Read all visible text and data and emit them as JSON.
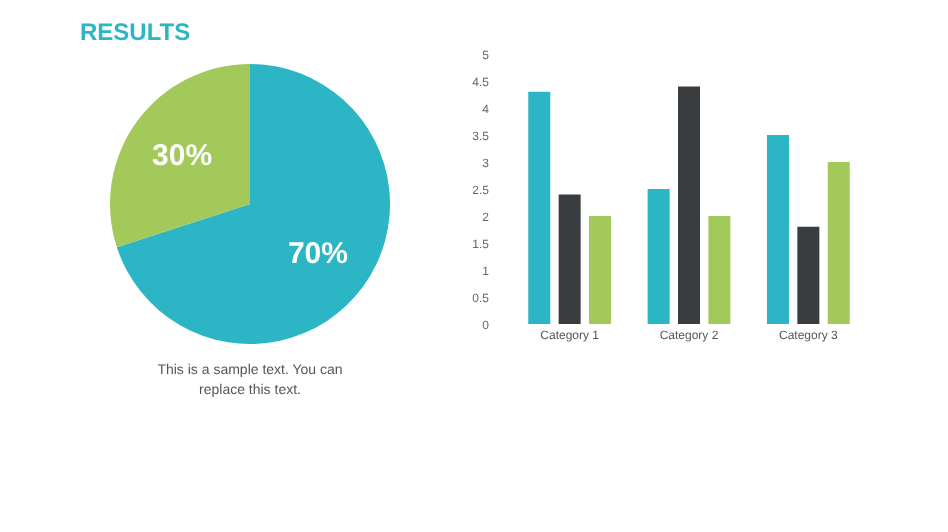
{
  "chart_data": [
    {
      "type": "pie",
      "title": "RESULTS",
      "categories": [
        null,
        null
      ],
      "values": [
        70,
        30
      ],
      "colors": [
        "#2bb5c5",
        "#a3c95a"
      ],
      "value_labels": [
        "70%",
        "30%"
      ],
      "legend": false,
      "annotations": [
        "This is a sample text. You can replace this text."
      ]
    },
    {
      "type": "bar",
      "categories": [
        "Category 1",
        "Category 2",
        "Category 3"
      ],
      "series": [
        {
          "color": "#2bb5c5",
          "values": [
            4.3,
            2.5,
            3.5
          ]
        },
        {
          "color": "#3a3d40",
          "values": [
            2.4,
            4.4,
            1.8
          ]
        },
        {
          "color": "#a3c95a",
          "values": [
            2.0,
            2.0,
            3.0
          ]
        }
      ],
      "ylim": [
        0,
        5
      ],
      "yticks": [
        0,
        0.5,
        1,
        1.5,
        2,
        2.5,
        3,
        3.5,
        4,
        4.5,
        5
      ],
      "grid": false,
      "legend": false
    }
  ]
}
